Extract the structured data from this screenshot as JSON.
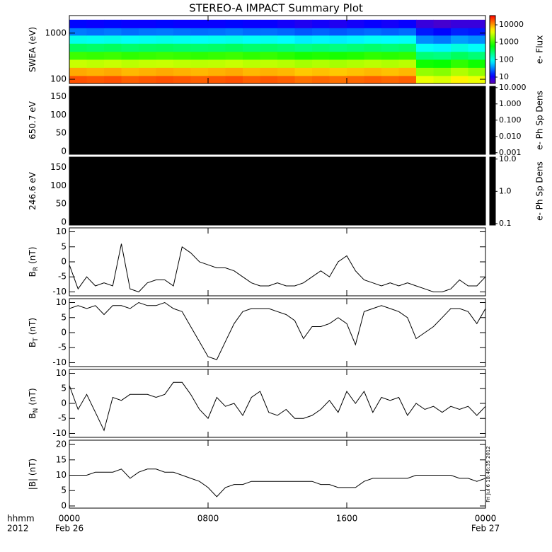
{
  "title": "STEREO-A IMPACT Summary Plot",
  "timestamp": "Fri Jul  6 18:46:35 2012",
  "xaxis": {
    "xlim": [
      0,
      24
    ],
    "xticks": [
      {
        "value": 0,
        "label": "0000"
      },
      {
        "value": 8,
        "label": "0800"
      },
      {
        "value": 16,
        "label": "1600"
      },
      {
        "value": 24,
        "label": "0000"
      }
    ],
    "left_labels": [
      "hhmm",
      "2012"
    ],
    "date_start": "Feb 26",
    "date_end": "Feb 27"
  },
  "chart_data": [
    {
      "type": "heatmap",
      "ylabel": "SWEA (eV)",
      "ylog": true,
      "ylim": [
        81,
        2400
      ],
      "yticks": [
        100,
        1000
      ],
      "time_bins": [
        0,
        1,
        2,
        3,
        4,
        5,
        6,
        7,
        8,
        9,
        10,
        11,
        12,
        13,
        14,
        15,
        16,
        17,
        18,
        19,
        20,
        21,
        22,
        23,
        24
      ],
      "energy_bins": [
        80,
        120,
        180,
        270,
        400,
        600,
        900,
        1300,
        1950
      ],
      "z": [
        [
          18000,
          17000,
          18000,
          16000,
          17000,
          18000,
          17000,
          16000,
          17000,
          18000,
          16000,
          17000,
          16000,
          14000,
          15000,
          14000,
          15000,
          16000,
          15000,
          16000,
          4000,
          3500,
          5000,
          4000
        ],
        [
          9000,
          8500,
          9000,
          8000,
          8500,
          9000,
          8500,
          8000,
          8500,
          9000,
          8000,
          8500,
          8000,
          7000,
          7500,
          7000,
          7500,
          8000,
          7500,
          8000,
          2000,
          1800,
          2500,
          2000
        ],
        [
          3000,
          2800,
          3000,
          2700,
          2900,
          3000,
          2800,
          2700,
          2800,
          3000,
          2700,
          2800,
          2600,
          2300,
          2500,
          2300,
          2500,
          2700,
          2500,
          2700,
          700,
          650,
          900,
          700
        ],
        [
          1000,
          950,
          1000,
          900,
          950,
          1000,
          950,
          900,
          950,
          1000,
          900,
          950,
          850,
          750,
          800,
          750,
          800,
          900,
          850,
          900,
          250,
          230,
          300,
          250
        ],
        [
          300,
          280,
          300,
          270,
          290,
          300,
          280,
          270,
          280,
          300,
          270,
          280,
          260,
          230,
          250,
          230,
          250,
          270,
          250,
          270,
          90,
          80,
          110,
          90
        ],
        [
          100,
          95,
          100,
          90,
          95,
          100,
          95,
          90,
          95,
          100,
          90,
          95,
          85,
          75,
          80,
          75,
          80,
          90,
          85,
          90,
          35,
          30,
          40,
          35
        ],
        [
          30,
          28,
          30,
          27,
          29,
          30,
          28,
          27,
          28,
          30,
          27,
          28,
          26,
          23,
          25,
          23,
          25,
          27,
          25,
          27,
          14,
          12,
          15,
          14
        ],
        [
          12,
          11,
          12,
          11,
          11,
          12,
          11,
          11,
          11,
          12,
          11,
          11,
          10,
          9,
          10,
          9,
          10,
          11,
          10,
          11,
          7,
          6,
          7,
          7
        ]
      ],
      "colorbar": {
        "colormap": "rainbow",
        "log": true,
        "clim": [
          4.3,
          33800
        ],
        "ticks": [
          10,
          100,
          1000,
          10000
        ],
        "label": "e- Flux"
      }
    },
    {
      "type": "blank",
      "ylabel": "650.7 eV",
      "ylim": [
        -8,
        178
      ],
      "yticks": [
        0,
        50,
        100,
        150
      ],
      "color": "#000000",
      "colorbar": {
        "color": "#000000",
        "log": true,
        "clim": [
          0.0008,
          12
        ],
        "ticks": [
          {
            "value": 0.001,
            "label": "0.001"
          },
          {
            "value": 0.01,
            "label": "0.010"
          },
          {
            "value": 0.1,
            "label": "0.100"
          },
          {
            "value": 1,
            "label": "1.000"
          },
          {
            "value": 10,
            "label": "10.000"
          }
        ],
        "label": "e- Ph Sp Dens"
      }
    },
    {
      "type": "blank",
      "ylabel": "246.6 eV",
      "ylim": [
        -8,
        178
      ],
      "yticks": [
        0,
        50,
        100,
        150
      ],
      "color": "#000000",
      "colorbar": {
        "color": "#000000",
        "log": true,
        "clim": [
          0.09,
          11.5
        ],
        "ticks": [
          {
            "value": 0.1,
            "label": "0.1"
          },
          {
            "value": 1,
            "label": "1.0"
          },
          {
            "value": 10,
            "label": "10.0"
          }
        ],
        "label": "e- Ph Sp Dens"
      }
    },
    {
      "type": "line",
      "ylabel": "B",
      "ylabel_sub": "R",
      "ylabel_unit": "(nT)",
      "ylim": [
        -11.3,
        11.3
      ],
      "yticks": [
        -10,
        -5,
        0,
        5,
        10
      ],
      "color": "#000000",
      "x": [
        0,
        0.5,
        1,
        1.5,
        2,
        2.5,
        3,
        3.5,
        4,
        4.5,
        5,
        5.5,
        6,
        6.5,
        7,
        7.5,
        8,
        8.5,
        9,
        9.5,
        10,
        10.5,
        11,
        11.5,
        12,
        12.5,
        13,
        13.5,
        14,
        14.5,
        15,
        15.5,
        16,
        16.5,
        17,
        17.5,
        18,
        18.5,
        19,
        19.5,
        20,
        20.5,
        21,
        21.5,
        22,
        22.5,
        23,
        23.5,
        24
      ],
      "values": [
        -1,
        -9,
        -5,
        -8,
        -7,
        -8,
        6,
        -9,
        -10,
        -7,
        -6,
        -6,
        -8,
        5,
        3,
        0,
        -1,
        -2,
        -2,
        -3,
        -5,
        -7,
        -8,
        -8,
        -7,
        -8,
        -8,
        -7,
        -5,
        -3,
        -5,
        0,
        2,
        -3,
        -6,
        -7,
        -8,
        -7,
        -8,
        -7,
        -8,
        -9,
        -10,
        -10,
        -9,
        -6,
        -8,
        -8,
        -5
      ]
    },
    {
      "type": "line",
      "ylabel": "B",
      "ylabel_sub": "T",
      "ylabel_unit": "(nT)",
      "ylim": [
        -11.3,
        11.3
      ],
      "yticks": [
        -10,
        -5,
        0,
        5,
        10
      ],
      "color": "#000000",
      "x": [
        0,
        0.5,
        1,
        1.5,
        2,
        2.5,
        3,
        3.5,
        4,
        4.5,
        5,
        5.5,
        6,
        6.5,
        7,
        7.5,
        8,
        8.5,
        9,
        9.5,
        10,
        10.5,
        11,
        11.5,
        12,
        12.5,
        13,
        13.5,
        14,
        14.5,
        15,
        15.5,
        16,
        16.5,
        17,
        17.5,
        18,
        18.5,
        19,
        19.5,
        20,
        20.5,
        21,
        21.5,
        22,
        22.5,
        23,
        23.5,
        24
      ],
      "values": [
        8,
        9,
        8,
        9,
        6,
        9,
        9,
        8,
        10,
        9,
        9,
        10,
        8,
        7,
        2,
        -3,
        -8,
        -9,
        -3,
        3,
        7,
        8,
        8,
        8,
        7,
        6,
        4,
        -2,
        2,
        2,
        3,
        5,
        3,
        -4,
        7,
        8,
        9,
        8,
        7,
        5,
        -2,
        0,
        2,
        5,
        8,
        8,
        7,
        3,
        8
      ]
    },
    {
      "type": "line",
      "ylabel": "B",
      "ylabel_sub": "N",
      "ylabel_unit": "(nT)",
      "ylim": [
        -11.3,
        11.3
      ],
      "yticks": [
        -10,
        -5,
        0,
        5,
        10
      ],
      "color": "#000000",
      "x": [
        0,
        0.5,
        1,
        1.5,
        2,
        2.5,
        3,
        3.5,
        4,
        4.5,
        5,
        5.5,
        6,
        6.5,
        7,
        7.5,
        8,
        8.5,
        9,
        9.5,
        10,
        10.5,
        11,
        11.5,
        12,
        12.5,
        13,
        13.5,
        14,
        14.5,
        15,
        15.5,
        16,
        16.5,
        17,
        17.5,
        18,
        18.5,
        19,
        19.5,
        20,
        20.5,
        21,
        21.5,
        22,
        22.5,
        23,
        23.5,
        24
      ],
      "values": [
        6,
        -2,
        3,
        -3,
        -9,
        2,
        1,
        3,
        3,
        3,
        2,
        3,
        7,
        7,
        3,
        -2,
        -5,
        2,
        -1,
        0,
        -4,
        2,
        4,
        -3,
        -4,
        -2,
        -5,
        -5,
        -4,
        -2,
        1,
        -3,
        4,
        0,
        4,
        -3,
        2,
        1,
        2,
        -4,
        0,
        -2,
        -1,
        -3,
        -1,
        -2,
        -1,
        -4,
        -1
      ]
    },
    {
      "type": "line",
      "ylabel": "|B| (nT)",
      "ylim": [
        -0.7,
        21.4
      ],
      "yticks": [
        0,
        5,
        10,
        15,
        20
      ],
      "color": "#000000",
      "x": [
        0,
        0.5,
        1,
        1.5,
        2,
        2.5,
        3,
        3.5,
        4,
        4.5,
        5,
        5.5,
        6,
        6.5,
        7,
        7.5,
        8,
        8.5,
        9,
        9.5,
        10,
        10.5,
        11,
        11.5,
        12,
        12.5,
        13,
        13.5,
        14,
        14.5,
        15,
        15.5,
        16,
        16.5,
        17,
        17.5,
        18,
        18.5,
        19,
        19.5,
        20,
        20.5,
        21,
        21.5,
        22,
        22.5,
        23,
        23.5,
        24
      ],
      "values": [
        10,
        10,
        10,
        11,
        11,
        11,
        12,
        9,
        11,
        12,
        12,
        11,
        11,
        10,
        9,
        8,
        6,
        3,
        6,
        7,
        7,
        8,
        8,
        8,
        8,
        8,
        8,
        8,
        8,
        7,
        7,
        6,
        6,
        6,
        8,
        9,
        9,
        9,
        9,
        9,
        10,
        10,
        10,
        10,
        10,
        9,
        9,
        8,
        9
      ]
    }
  ]
}
